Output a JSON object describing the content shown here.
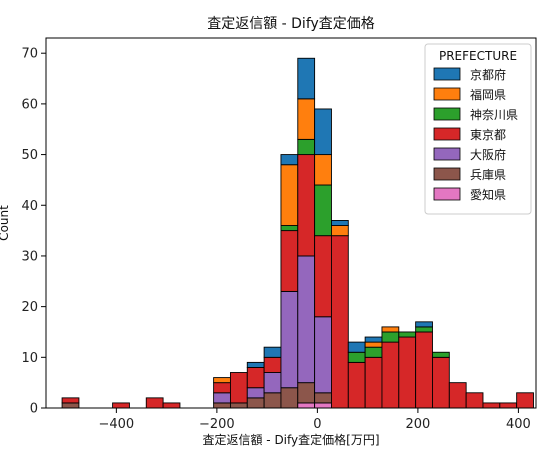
{
  "chart_data": {
    "type": "bar",
    "stacked": true,
    "title": "査定返信額 - Dify査定価格",
    "xlabel": "査定返信額 - Dify査定価格[万円]",
    "ylabel": "Count",
    "xlim": [
      -540,
      435
    ],
    "ylim": [
      0,
      73
    ],
    "xticks": [
      -400,
      -200,
      0,
      200,
      400
    ],
    "yticks": [
      0,
      10,
      20,
      30,
      40,
      50,
      60,
      70
    ],
    "bin_width": 33.5,
    "bins": [
      -508,
      -474.5,
      -441,
      -407.5,
      -374,
      -340.5,
      -307,
      -273.5,
      -240,
      -206.5,
      -173,
      -139.5,
      -106,
      -72.5,
      -39,
      -5.5,
      28,
      61.5,
      95,
      128.5,
      162,
      195.5,
      229,
      262.5,
      296,
      329.5,
      363,
      396.5
    ],
    "legend": {
      "title": "PREFECTURE",
      "placement": "top-right"
    },
    "series": [
      {
        "name": "愛知県",
        "color": "#e377c2",
        "values": [
          0,
          0,
          0,
          0,
          0,
          0,
          0,
          0,
          0,
          0,
          0,
          0,
          0,
          0,
          1,
          1,
          0,
          0,
          0,
          0,
          0,
          0,
          0,
          0,
          0,
          0,
          0,
          0
        ]
      },
      {
        "name": "兵庫県",
        "color": "#8c564b",
        "values": [
          1,
          0,
          0,
          0,
          0,
          0,
          0,
          0,
          0,
          1,
          1,
          2,
          3,
          4,
          4,
          2,
          0,
          0,
          0,
          0,
          0,
          0,
          0,
          0,
          0,
          0,
          0,
          0
        ]
      },
      {
        "name": "大阪府",
        "color": "#9467bd",
        "values": [
          0,
          0,
          0,
          0,
          0,
          0,
          0,
          0,
          0,
          2,
          0,
          2,
          4,
          19,
          25,
          15,
          0,
          0,
          0,
          0,
          0,
          0,
          0,
          0,
          0,
          0,
          0,
          0
        ]
      },
      {
        "name": "東京都",
        "color": "#d62728",
        "values": [
          1,
          0,
          0,
          1,
          0,
          2,
          1,
          0,
          0,
          2,
          6,
          4,
          3,
          12,
          20,
          16,
          34,
          9,
          10,
          13,
          14,
          15,
          10,
          5,
          3,
          1,
          1,
          3
        ]
      },
      {
        "name": "神奈川県",
        "color": "#2ca02c",
        "values": [
          0,
          0,
          0,
          0,
          0,
          0,
          0,
          0,
          0,
          0,
          0,
          0,
          0,
          1,
          3,
          10,
          0,
          2,
          2,
          2,
          1,
          1,
          1,
          0,
          0,
          0,
          0,
          0
        ]
      },
      {
        "name": "福岡県",
        "color": "#ff7f0e",
        "values": [
          0,
          0,
          0,
          0,
          0,
          0,
          0,
          0,
          0,
          1,
          0,
          0,
          0,
          12,
          8,
          6,
          2,
          0,
          1,
          1,
          0,
          0,
          0,
          0,
          0,
          0,
          0,
          0
        ]
      },
      {
        "name": "京都府",
        "color": "#1f77b4",
        "values": [
          0,
          0,
          0,
          0,
          0,
          0,
          0,
          0,
          0,
          0,
          0,
          1,
          2,
          2,
          8,
          9,
          1,
          2,
          1,
          0,
          0,
          1,
          0,
          0,
          0,
          0,
          0,
          0
        ]
      }
    ],
    "legend_order": [
      "京都府",
      "福岡県",
      "神奈川県",
      "東京都",
      "大阪府",
      "兵庫県",
      "愛知県"
    ]
  }
}
